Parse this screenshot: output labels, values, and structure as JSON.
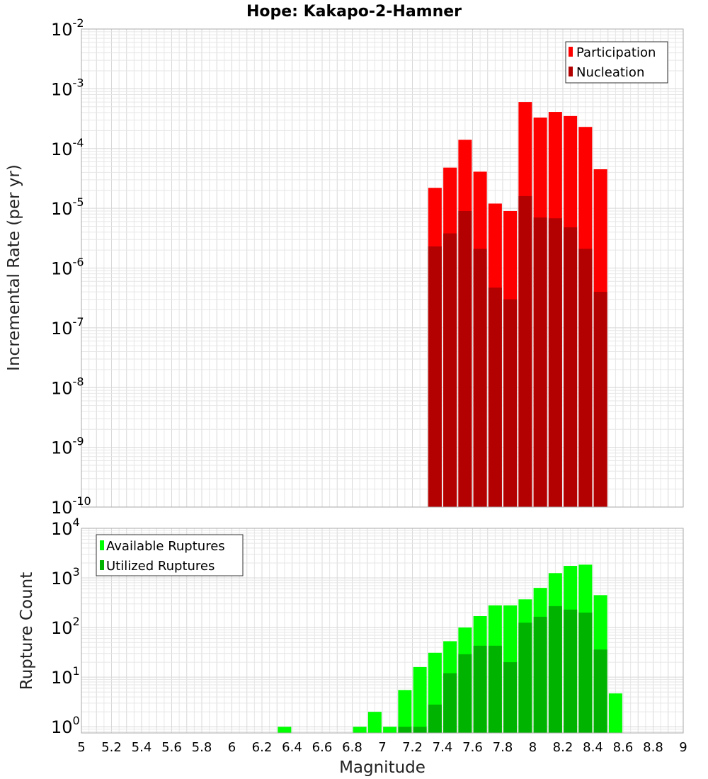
{
  "chart_data": [
    {
      "type": "bar",
      "title": "Hope: Kakapo-2-Hamner",
      "xlabel": "",
      "ylabel": "Incremental Rate (per yr)",
      "yscale": "log",
      "ylim": [
        1e-10,
        0.01
      ],
      "xlim": [
        5,
        9
      ],
      "y_tick_exponents": [
        "-10",
        "-9",
        "-8",
        "-7",
        "-6",
        "-5",
        "-4",
        "-3",
        "-2"
      ],
      "y_tick_base": "10",
      "grid": true,
      "legend_position": "top-right",
      "x": [
        7.35,
        7.45,
        7.55,
        7.65,
        7.75,
        7.85,
        7.95,
        8.05,
        8.15,
        8.25,
        8.35,
        8.45
      ],
      "series": [
        {
          "name": "Participation",
          "color": "#ff0000",
          "values": [
            2.2e-05,
            4.8e-05,
            0.00014,
            4.1e-05,
            1.2e-05,
            9e-06,
            0.0006,
            0.00033,
            0.00041,
            0.00035,
            0.00023,
            4.5e-05
          ]
        },
        {
          "name": "Nucleation",
          "color": "#b30000",
          "values": [
            2.3e-06,
            3.8e-06,
            9e-06,
            2.1e-06,
            4.7e-07,
            3e-07,
            1.6e-05,
            7e-06,
            6.8e-06,
            4.8e-06,
            2.1e-06,
            4e-07
          ]
        }
      ]
    },
    {
      "type": "bar",
      "title": "",
      "xlabel": "Magnitude",
      "ylabel": "Rupture Count",
      "yscale": "log",
      "ylim": [
        0.75,
        10000
      ],
      "xlim": [
        5,
        9
      ],
      "x_ticks": [
        "5",
        "5.2",
        "5.4",
        "5.6",
        "5.8",
        "6",
        "6.2",
        "6.4",
        "6.6",
        "6.8",
        "7",
        "7.2",
        "7.4",
        "7.6",
        "7.8",
        "8",
        "8.2",
        "8.4",
        "8.6",
        "8.8",
        "9"
      ],
      "y_tick_exponents": [
        "0",
        "1",
        "2",
        "3",
        "4"
      ],
      "y_tick_base": "10",
      "grid": true,
      "legend_position": "top-left",
      "x": [
        6.35,
        6.85,
        6.95,
        7.05,
        7.15,
        7.25,
        7.35,
        7.45,
        7.55,
        7.65,
        7.75,
        7.85,
        7.95,
        8.05,
        8.15,
        8.25,
        8.35,
        8.45,
        8.55
      ],
      "series": [
        {
          "name": "Available Ruptures",
          "color": "#00ff00",
          "values": [
            1,
            1,
            2,
            1,
            5.5,
            16,
            31,
            53,
            100,
            170,
            280,
            280,
            370,
            630,
            1250,
            1750,
            1850,
            450,
            4.7
          ]
        },
        {
          "name": "Utilized Ruptures",
          "color": "#00b300",
          "values": [
            0,
            0,
            0,
            0,
            1,
            1,
            2.8,
            12,
            29,
            43,
            43,
            20,
            125,
            165,
            270,
            230,
            200,
            36,
            0
          ]
        }
      ]
    }
  ]
}
